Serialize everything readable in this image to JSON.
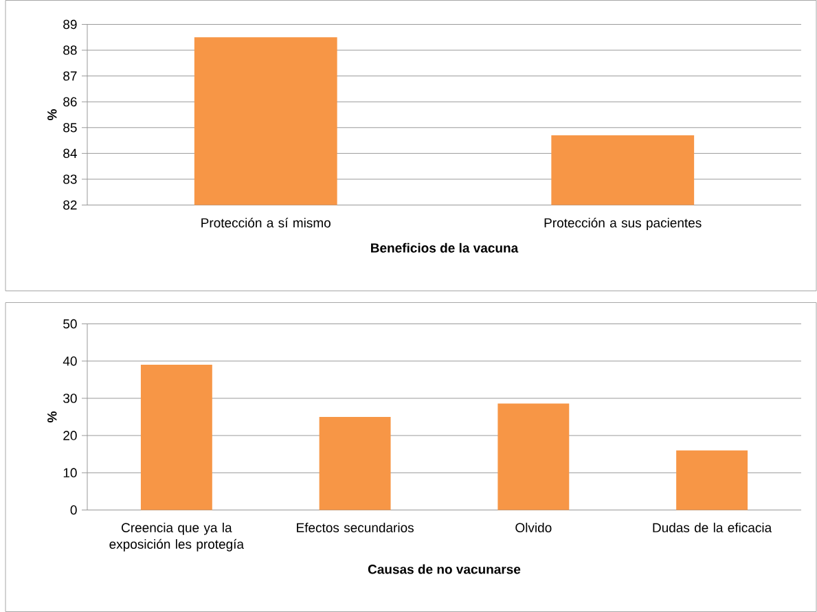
{
  "chart_data": [
    {
      "type": "bar",
      "xlabel": "Beneficios de la vacuna",
      "ylabel": "%",
      "categories": [
        "Protección a sí mismo",
        "Protección a sus pacientes"
      ],
      "values": [
        88.5,
        84.7
      ],
      "color": "#f79646",
      "ylim": [
        82,
        89
      ],
      "yticks": [
        82,
        83,
        84,
        85,
        86,
        87,
        88,
        89
      ],
      "grid": "y"
    },
    {
      "type": "bar",
      "xlabel": "Causas de no vacunarse",
      "ylabel": "%",
      "categories": [
        "Creencia que ya la exposición les protegía",
        "Efectos secundarios",
        "Olvido",
        "Dudas de la eficacia"
      ],
      "values": [
        39,
        25,
        28.6,
        16
      ],
      "color": "#f79646",
      "ylim": [
        0,
        50
      ],
      "yticks": [
        0,
        10,
        20,
        30,
        40,
        50
      ],
      "grid": "y"
    }
  ]
}
